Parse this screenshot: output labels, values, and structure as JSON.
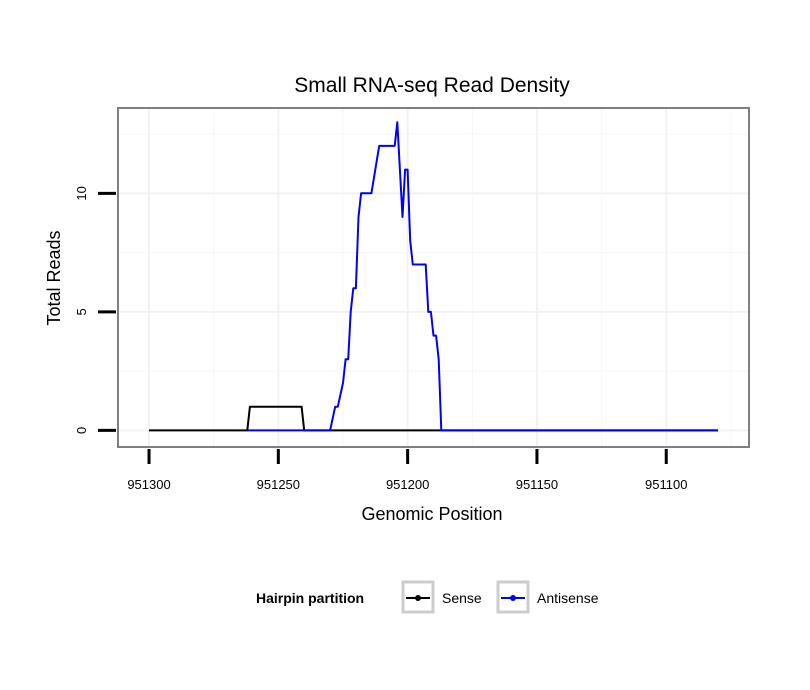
{
  "chart_data": {
    "type": "line",
    "title": "Small RNA-seq Read Density",
    "xlabel": "Genomic Position",
    "ylabel": "Total Reads",
    "x_reversed": true,
    "xlim": [
      951312,
      951068
    ],
    "ylim": [
      -0.7,
      13.6
    ],
    "x_ticks": [
      951300,
      951250,
      951200,
      951150,
      951100
    ],
    "x_tick_labels": [
      "951300",
      "951250",
      "951200",
      "951150",
      "951100"
    ],
    "y_ticks": [
      0,
      5,
      10
    ],
    "y_tick_labels": [
      "0",
      "5",
      "10"
    ],
    "grid": true,
    "legend": {
      "title": "Hairpin partition",
      "position": "bottom",
      "entries": [
        {
          "name": "Sense",
          "color": "#000000"
        },
        {
          "name": "Antisense",
          "color": "#0000ff"
        }
      ]
    },
    "series": [
      {
        "name": "Sense",
        "color": "#000000",
        "x": [
          951300,
          951262,
          951261,
          951241,
          951240,
          951080
        ],
        "y": [
          0,
          0,
          1,
          1,
          0,
          0
        ]
      },
      {
        "name": "Antisense",
        "color": "#0000ff",
        "x": [
          951262,
          951241,
          951230,
          951228,
          951227,
          951225,
          951224,
          951223,
          951222,
          951221,
          951220,
          951219,
          951218,
          951217,
          951216,
          951215,
          951214,
          951211,
          951210,
          951205,
          951204,
          951203,
          951202,
          951201,
          951200,
          951199,
          951198,
          951193,
          951192,
          951191,
          951190,
          951189,
          951188,
          951187,
          951186,
          951080
        ],
        "y": [
          0,
          0,
          0,
          1,
          1,
          2,
          3,
          3,
          5,
          6,
          6,
          9,
          10,
          10,
          10,
          10,
          10,
          12,
          12,
          12,
          13,
          11,
          9,
          11,
          11,
          8,
          7,
          7,
          5,
          5,
          4,
          4,
          3,
          0,
          0,
          0
        ]
      }
    ]
  }
}
